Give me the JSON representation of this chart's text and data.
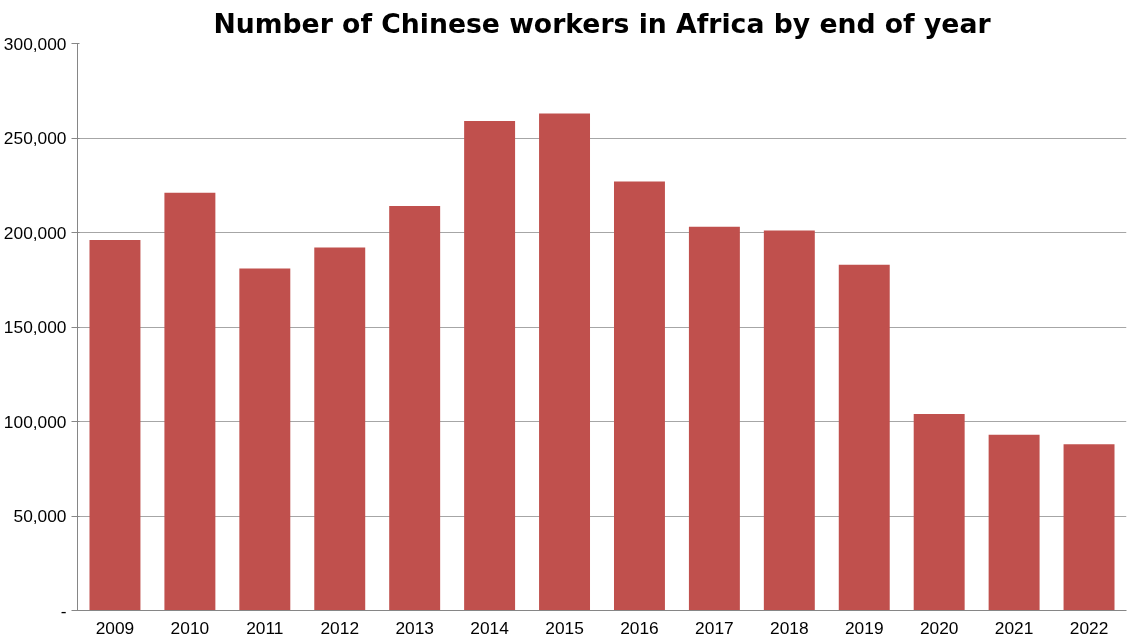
{
  "chart_data": {
    "type": "bar",
    "title": "Number of Chinese workers in Africa by end of year",
    "categories": [
      "2009",
      "2010",
      "2011",
      "2012",
      "2013",
      "2014",
      "2015",
      "2016",
      "2017",
      "2018",
      "2019",
      "2020",
      "2021",
      "2022"
    ],
    "values": [
      196000,
      221000,
      181000,
      192000,
      214000,
      259000,
      263000,
      227000,
      203000,
      201000,
      183000,
      104000,
      93000,
      88000
    ],
    "color": "#c0504d",
    "ylim": [
      0,
      300000
    ],
    "yticks": [
      {
        "value": 0,
        "label": "-"
      },
      {
        "value": 50000,
        "label": "50,000"
      },
      {
        "value": 100000,
        "label": "100,000"
      },
      {
        "value": 150000,
        "label": "150,000"
      },
      {
        "value": 200000,
        "label": "200,000"
      },
      {
        "value": 250000,
        "label": "250,000"
      },
      {
        "value": 300000,
        "label": "300,000"
      }
    ],
    "grid": "y"
  }
}
